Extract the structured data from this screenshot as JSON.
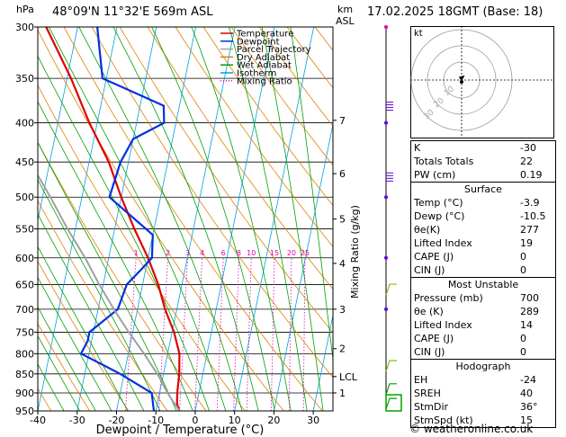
{
  "header": {
    "location": "48°09'N  11°32'E  569m  ASL",
    "datetime": "17.02.2025  18GMT  (Base: 18)",
    "hpa_label": "hPa",
    "km_label": "km",
    "asl_label": "ASL"
  },
  "legend": {
    "items": [
      {
        "label": "Temperature",
        "color": "#e00000",
        "style": "solid"
      },
      {
        "label": "Dewpoint",
        "color": "#0030e0",
        "style": "solid"
      },
      {
        "label": "Parcel Trajectory",
        "color": "#a0a0a0",
        "style": "solid"
      },
      {
        "label": "Dry Adiabat",
        "color": "#e08000",
        "style": "solid"
      },
      {
        "label": "Wet Adiabat",
        "color": "#00a000",
        "style": "solid"
      },
      {
        "label": "Isotherm",
        "color": "#00a0e0",
        "style": "solid"
      },
      {
        "label": "Mixing Ratio",
        "color": "#e000b0",
        "style": "dotted"
      }
    ]
  },
  "chart_data": {
    "type": "line",
    "title": "",
    "xlabel": "Dewpoint / Temperature (°C)",
    "ylabel": "hPa",
    "right_label": "Mixing Ratio (g/kg)",
    "xlim": [
      -40,
      35
    ],
    "ylim": [
      950,
      300
    ],
    "pressure_ticks": [
      300,
      350,
      400,
      450,
      500,
      550,
      600,
      650,
      700,
      750,
      800,
      850,
      900,
      950
    ],
    "temp_ticks": [
      -40,
      -30,
      -20,
      -10,
      0,
      10,
      20,
      30
    ],
    "km_ticks": [
      {
        "p": 397,
        "label": "7"
      },
      {
        "p": 466,
        "label": "6"
      },
      {
        "p": 534,
        "label": "5"
      },
      {
        "p": 610,
        "label": "4"
      },
      {
        "p": 700,
        "label": "3"
      },
      {
        "p": 788,
        "label": "2"
      },
      {
        "p": 857,
        "label": "LCL"
      },
      {
        "p": 900,
        "label": "1"
      }
    ],
    "mixing_ratio_labels": [
      "1",
      "2",
      "3",
      "4",
      "6",
      "8",
      "10",
      "15",
      "20",
      "25"
    ],
    "series": [
      {
        "name": "Temperature",
        "color": "#e00000",
        "points": [
          [
            950,
            -4
          ],
          [
            930,
            -5
          ],
          [
            900,
            -5.5
          ],
          [
            850,
            -6
          ],
          [
            800,
            -7
          ],
          [
            750,
            -9.5
          ],
          [
            700,
            -13
          ],
          [
            650,
            -16
          ],
          [
            600,
            -20
          ],
          [
            550,
            -25
          ],
          [
            500,
            -30
          ],
          [
            450,
            -35
          ],
          [
            400,
            -42
          ],
          [
            350,
            -49
          ],
          [
            300,
            -58
          ]
        ]
      },
      {
        "name": "Dewpoint",
        "color": "#0030e0",
        "points": [
          [
            950,
            -10.5
          ],
          [
            900,
            -12
          ],
          [
            850,
            -21
          ],
          [
            800,
            -32
          ],
          [
            770,
            -31
          ],
          [
            750,
            -31
          ],
          [
            700,
            -25
          ],
          [
            650,
            -24
          ],
          [
            620,
            -21
          ],
          [
            600,
            -19
          ],
          [
            560,
            -20
          ],
          [
            500,
            -33
          ],
          [
            450,
            -32
          ],
          [
            420,
            -30
          ],
          [
            400,
            -23
          ],
          [
            380,
            -24
          ],
          [
            350,
            -41
          ],
          [
            300,
            -45
          ]
        ]
      },
      {
        "name": "Parcel Trajectory",
        "color": "#a0a0a0",
        "points": [
          [
            950,
            -4
          ],
          [
            900,
            -8
          ],
          [
            857,
            -11
          ],
          [
            800,
            -16
          ],
          [
            750,
            -21
          ],
          [
            700,
            -26
          ],
          [
            650,
            -31
          ],
          [
            600,
            -36
          ],
          [
            550,
            -42
          ],
          [
            500,
            -48
          ],
          [
            450,
            -55
          ],
          [
            400,
            -62
          ],
          [
            350,
            -70
          ],
          [
            300,
            -79
          ]
        ]
      }
    ]
  },
  "indices": {
    "k_label": "K",
    "k": "-30",
    "tt_label": "Totals Totals",
    "tt": "22",
    "pw_label": "PW (cm)",
    "pw": "0.19"
  },
  "surface": {
    "title": "Surface",
    "rows": [
      {
        "label": "Temp (°C)",
        "value": "-3.9"
      },
      {
        "label": "Dewp (°C)",
        "value": "-10.5"
      },
      {
        "label": "θe(K)",
        "value": "277"
      },
      {
        "label": "Lifted Index",
        "value": "19"
      },
      {
        "label": "CAPE (J)",
        "value": "0"
      },
      {
        "label": "CIN (J)",
        "value": "0"
      }
    ]
  },
  "unstable": {
    "title": "Most Unstable",
    "rows": [
      {
        "label": "Pressure (mb)",
        "value": "700"
      },
      {
        "label": "θe (K)",
        "value": "289"
      },
      {
        "label": "Lifted Index",
        "value": "14"
      },
      {
        "label": "CAPE (J)",
        "value": "0"
      },
      {
        "label": "CIN (J)",
        "value": "0"
      }
    ]
  },
  "hodograph": {
    "title": "Hodograph",
    "box_label": "kt",
    "ring_labels": [
      "10",
      "20",
      "30"
    ],
    "rows": [
      {
        "label": "EH",
        "value": "-24"
      },
      {
        "label": "SREH",
        "value": "40"
      },
      {
        "label": "StmDir",
        "value": "36°"
      },
      {
        "label": "StmSpd (kt)",
        "value": "15"
      }
    ]
  },
  "footer": {
    "credit": "© weatheronline.co.uk"
  }
}
